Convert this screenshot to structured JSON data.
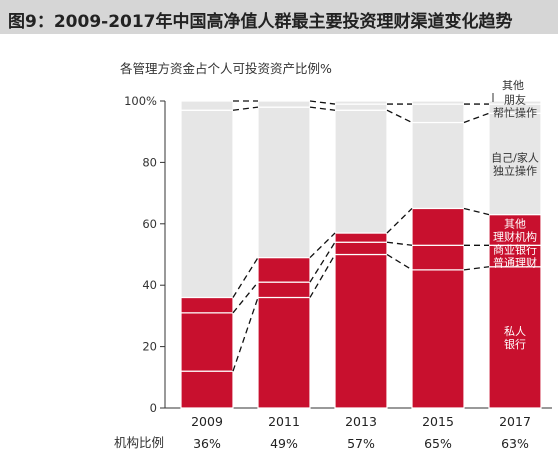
{
  "title": "图9：2009-2017年中国高净值人群最主要投资理财渠道变化趋势",
  "chart_data": {
    "type": "bar",
    "stacked": true,
    "title": "各管理方资金占个人可投资资产比例%",
    "categories": [
      "2009",
      "2011",
      "2013",
      "2015",
      "2017"
    ],
    "yticks": [
      "0",
      "20",
      "40",
      "60",
      "80",
      "100%"
    ],
    "ylim": [
      0,
      100
    ],
    "series": [
      {
        "name": "私人银行",
        "values": [
          12,
          36,
          50,
          45,
          46
        ]
      },
      {
        "name": "商业银行普通理财",
        "values": [
          19,
          5,
          4,
          8,
          7
        ]
      },
      {
        "name": "其他理财机构",
        "values": [
          5,
          8,
          3,
          12,
          10
        ]
      },
      {
        "name": "自己/家人独立操作",
        "values": [
          61,
          49,
          40,
          28,
          33
        ]
      },
      {
        "name": "朋友帮忙操作",
        "values": [
          3,
          2,
          2,
          6,
          3
        ]
      },
      {
        "name": "其他",
        "values": [
          0,
          0,
          1,
          1,
          1
        ]
      }
    ],
    "ratio_label": "机构比例",
    "ratios": [
      "36%",
      "49%",
      "57%",
      "65%",
      "63%"
    ]
  },
  "colors": {
    "institution": "#c8102e",
    "self": "#e6e6e6",
    "background": "#ffffff",
    "title_bg": "#d6d6d6"
  }
}
